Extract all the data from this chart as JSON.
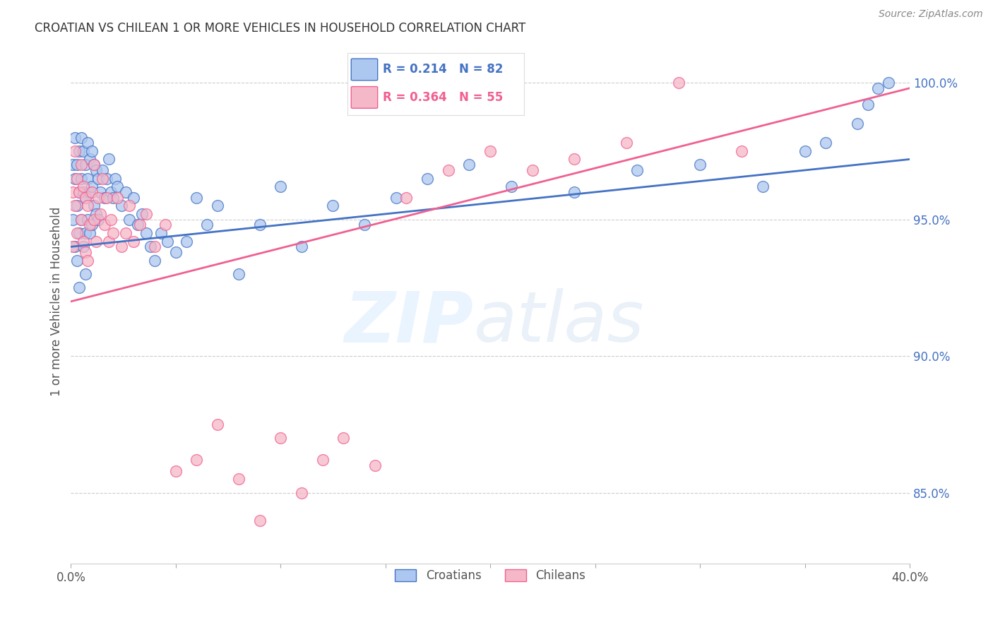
{
  "title": "CROATIAN VS CHILEAN 1 OR MORE VEHICLES IN HOUSEHOLD CORRELATION CHART",
  "source": "Source: ZipAtlas.com",
  "ylabel": "1 or more Vehicles in Household",
  "xlim": [
    0.0,
    0.4
  ],
  "ylim": [
    0.824,
    1.016
  ],
  "xticks": [
    0.0,
    0.05,
    0.1,
    0.15,
    0.2,
    0.25,
    0.3,
    0.35,
    0.4
  ],
  "xticklabels": [
    "0.0%",
    "",
    "",
    "",
    "",
    "",
    "",
    "",
    "40.0%"
  ],
  "yticks": [
    0.85,
    0.9,
    0.95,
    1.0
  ],
  "yticklabels": [
    "85.0%",
    "90.0%",
    "95.0%",
    "100.0%"
  ],
  "croatian_color": "#adc8f0",
  "chilean_color": "#f5b8c8",
  "croatian_line_color": "#4472c4",
  "chilean_line_color": "#f06090",
  "R_croatian": 0.214,
  "N_croatian": 82,
  "R_chilean": 0.364,
  "N_chilean": 55,
  "background_color": "#ffffff",
  "grid_color": "#cccccc",
  "title_color": "#333333",
  "tick_color": "#4472c4",
  "source_color": "#888888",
  "croatians_x": [
    0.001,
    0.001,
    0.002,
    0.002,
    0.002,
    0.003,
    0.003,
    0.003,
    0.004,
    0.004,
    0.004,
    0.004,
    0.005,
    0.005,
    0.005,
    0.006,
    0.006,
    0.006,
    0.007,
    0.007,
    0.007,
    0.007,
    0.008,
    0.008,
    0.008,
    0.009,
    0.009,
    0.009,
    0.01,
    0.01,
    0.01,
    0.011,
    0.011,
    0.012,
    0.012,
    0.013,
    0.013,
    0.014,
    0.015,
    0.016,
    0.017,
    0.018,
    0.019,
    0.02,
    0.021,
    0.022,
    0.024,
    0.026,
    0.028,
    0.03,
    0.032,
    0.034,
    0.036,
    0.038,
    0.04,
    0.043,
    0.046,
    0.05,
    0.055,
    0.06,
    0.065,
    0.07,
    0.08,
    0.09,
    0.1,
    0.11,
    0.125,
    0.14,
    0.155,
    0.17,
    0.19,
    0.21,
    0.24,
    0.27,
    0.3,
    0.33,
    0.35,
    0.36,
    0.375,
    0.38,
    0.385,
    0.39
  ],
  "croatians_y": [
    0.97,
    0.95,
    0.98,
    0.965,
    0.94,
    0.97,
    0.955,
    0.935,
    0.975,
    0.96,
    0.945,
    0.925,
    0.98,
    0.965,
    0.95,
    0.975,
    0.96,
    0.94,
    0.97,
    0.958,
    0.945,
    0.93,
    0.978,
    0.965,
    0.95,
    0.972,
    0.96,
    0.945,
    0.975,
    0.962,
    0.948,
    0.97,
    0.955,
    0.968,
    0.952,
    0.965,
    0.95,
    0.96,
    0.968,
    0.958,
    0.965,
    0.972,
    0.96,
    0.958,
    0.965,
    0.962,
    0.955,
    0.96,
    0.95,
    0.958,
    0.948,
    0.952,
    0.945,
    0.94,
    0.935,
    0.945,
    0.942,
    0.938,
    0.942,
    0.958,
    0.948,
    0.955,
    0.93,
    0.948,
    0.962,
    0.94,
    0.955,
    0.948,
    0.958,
    0.965,
    0.97,
    0.962,
    0.96,
    0.968,
    0.97,
    0.962,
    0.975,
    0.978,
    0.985,
    0.992,
    0.998,
    1.0
  ],
  "chileans_x": [
    0.001,
    0.001,
    0.002,
    0.002,
    0.003,
    0.003,
    0.004,
    0.005,
    0.005,
    0.006,
    0.006,
    0.007,
    0.007,
    0.008,
    0.008,
    0.009,
    0.01,
    0.011,
    0.011,
    0.012,
    0.013,
    0.014,
    0.015,
    0.016,
    0.017,
    0.018,
    0.019,
    0.02,
    0.022,
    0.024,
    0.026,
    0.028,
    0.03,
    0.033,
    0.036,
    0.04,
    0.045,
    0.05,
    0.06,
    0.07,
    0.08,
    0.09,
    0.1,
    0.11,
    0.12,
    0.13,
    0.145,
    0.16,
    0.18,
    0.2,
    0.22,
    0.24,
    0.265,
    0.29,
    0.32
  ],
  "chileans_y": [
    0.96,
    0.94,
    0.975,
    0.955,
    0.965,
    0.945,
    0.96,
    0.97,
    0.95,
    0.962,
    0.942,
    0.958,
    0.938,
    0.955,
    0.935,
    0.948,
    0.96,
    0.97,
    0.95,
    0.942,
    0.958,
    0.952,
    0.965,
    0.948,
    0.958,
    0.942,
    0.95,
    0.945,
    0.958,
    0.94,
    0.945,
    0.955,
    0.942,
    0.948,
    0.952,
    0.94,
    0.948,
    0.858,
    0.862,
    0.875,
    0.855,
    0.84,
    0.87,
    0.85,
    0.862,
    0.87,
    0.86,
    0.958,
    0.968,
    0.975,
    0.968,
    0.972,
    0.978,
    1.0,
    0.975
  ]
}
